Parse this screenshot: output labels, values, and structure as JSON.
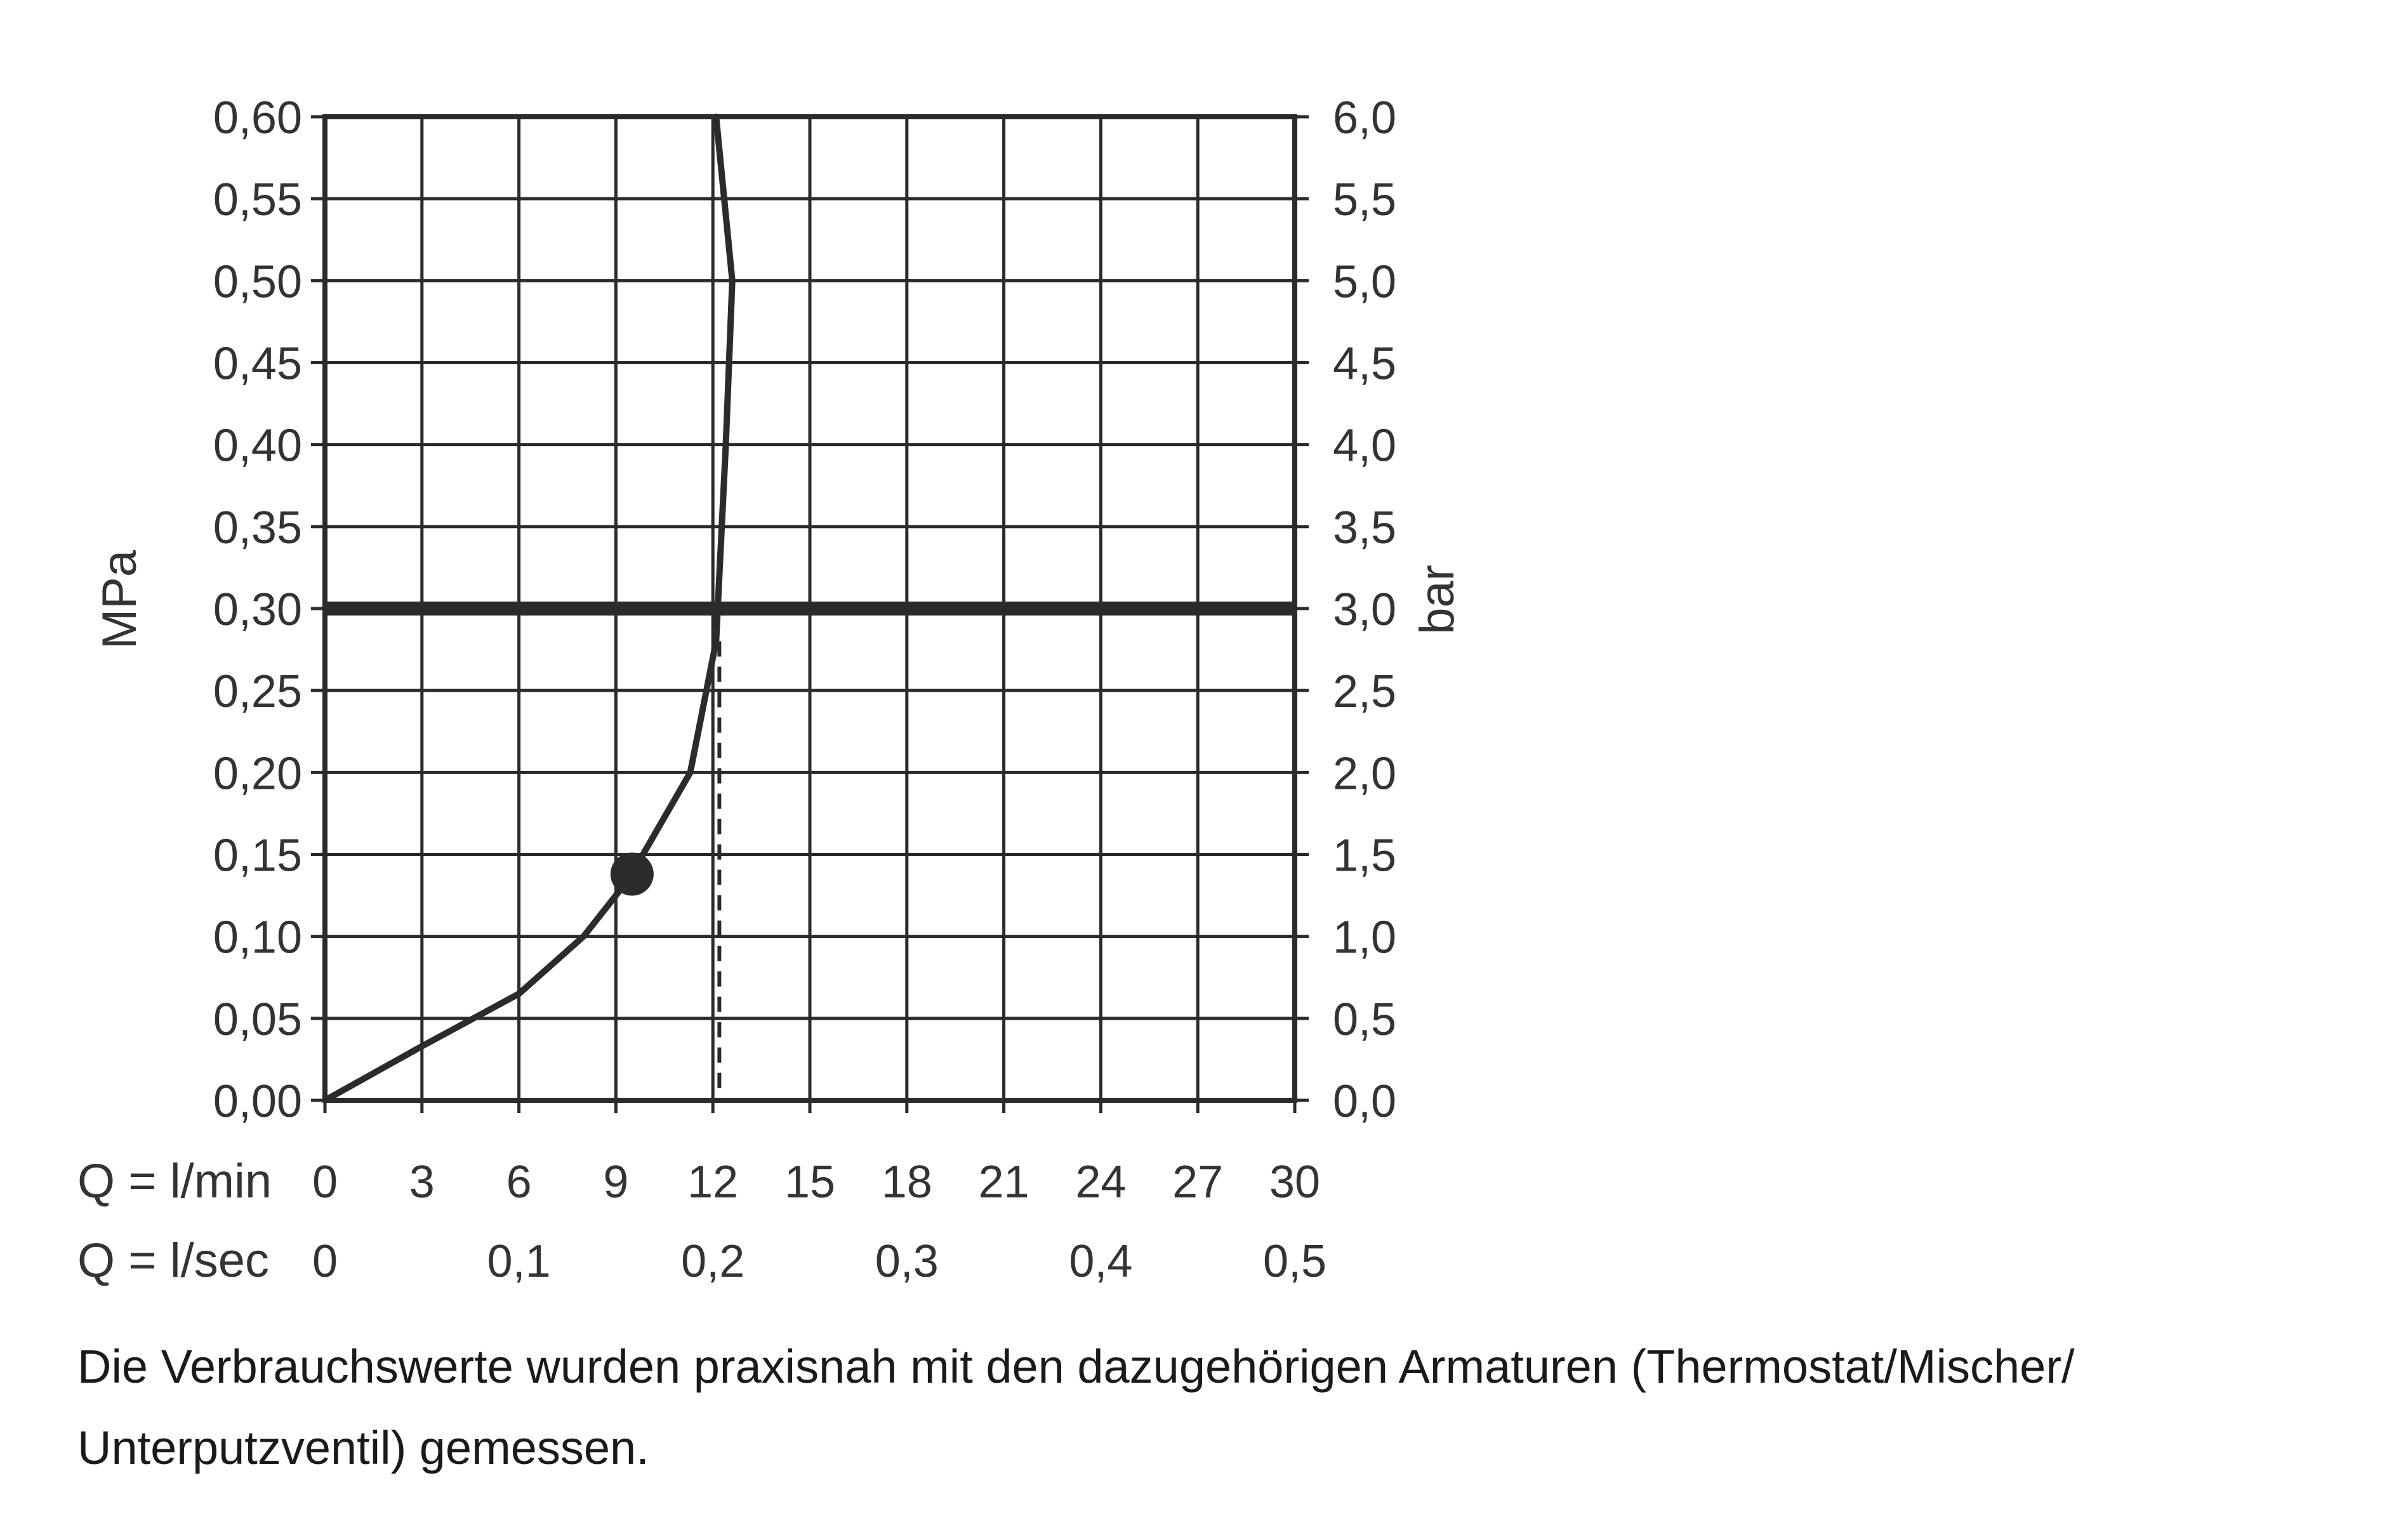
{
  "chart_data": {
    "type": "line",
    "y_left_label": "MPa",
    "y_right_label": "bar",
    "y_left_ticks": [
      "0,00",
      "0,05",
      "0,10",
      "0,15",
      "0,20",
      "0,25",
      "0,30",
      "0,35",
      "0,40",
      "0,45",
      "0,50",
      "0,55",
      "0,60"
    ],
    "y_right_ticks": [
      "0,0",
      "0,5",
      "1,0",
      "1,5",
      "2,0",
      "2,5",
      "3,0",
      "3,5",
      "4,0",
      "4,5",
      "5,0",
      "5,5",
      "6,0"
    ],
    "ylim": [
      0,
      0.6
    ],
    "xlim": [
      0,
      30
    ],
    "x_row1_label": "Q = l/min",
    "x_row1_ticks": [
      {
        "value": 0,
        "label": "0"
      },
      {
        "value": 3,
        "label": "3"
      },
      {
        "value": 6,
        "label": "6"
      },
      {
        "value": 9,
        "label": "9"
      },
      {
        "value": 12,
        "label": "12"
      },
      {
        "value": 15,
        "label": "15"
      },
      {
        "value": 18,
        "label": "18"
      },
      {
        "value": 21,
        "label": "21"
      },
      {
        "value": 24,
        "label": "24"
      },
      {
        "value": 27,
        "label": "27"
      },
      {
        "value": 30,
        "label": "30"
      }
    ],
    "x_row2_label": "Q = l/sec",
    "x_row2_ticks": [
      {
        "value": 0,
        "label": "0"
      },
      {
        "value": 6,
        "label": "0,1"
      },
      {
        "value": 12,
        "label": "0,2"
      },
      {
        "value": 18,
        "label": "0,3"
      },
      {
        "value": 24,
        "label": "0,4"
      },
      {
        "value": 30,
        "label": "0,5"
      }
    ],
    "grid": true,
    "series": [
      {
        "values": [
          {
            "x": 0,
            "y": 0.0
          },
          {
            "x": 3,
            "y": 0.033
          },
          {
            "x": 6,
            "y": 0.065
          },
          {
            "x": 8,
            "y": 0.1
          },
          {
            "x": 9.4,
            "y": 0.135
          },
          {
            "x": 11.3,
            "y": 0.2
          },
          {
            "x": 12.1,
            "y": 0.28
          },
          {
            "x": 12.4,
            "y": 0.4
          },
          {
            "x": 12.6,
            "y": 0.5
          },
          {
            "x": 12.1,
            "y": 0.6
          }
        ]
      }
    ],
    "marker": {
      "x": 9.5,
      "y": 0.138
    },
    "reference_line": {
      "y": 0.3
    },
    "dashed_line": {
      "x": 12.2,
      "y_from": 0.0,
      "y_to": 0.28
    },
    "colors": {
      "line": "#2b2b2b",
      "grid": "#2b2b2b",
      "text": "#333333"
    }
  },
  "caption": {
    "line1": "Die Verbrauchswerte wurden praxisnah mit den dazugehörigen Armaturen (Thermostat/Mischer/",
    "line2": "Unterputzventil) gemessen."
  }
}
